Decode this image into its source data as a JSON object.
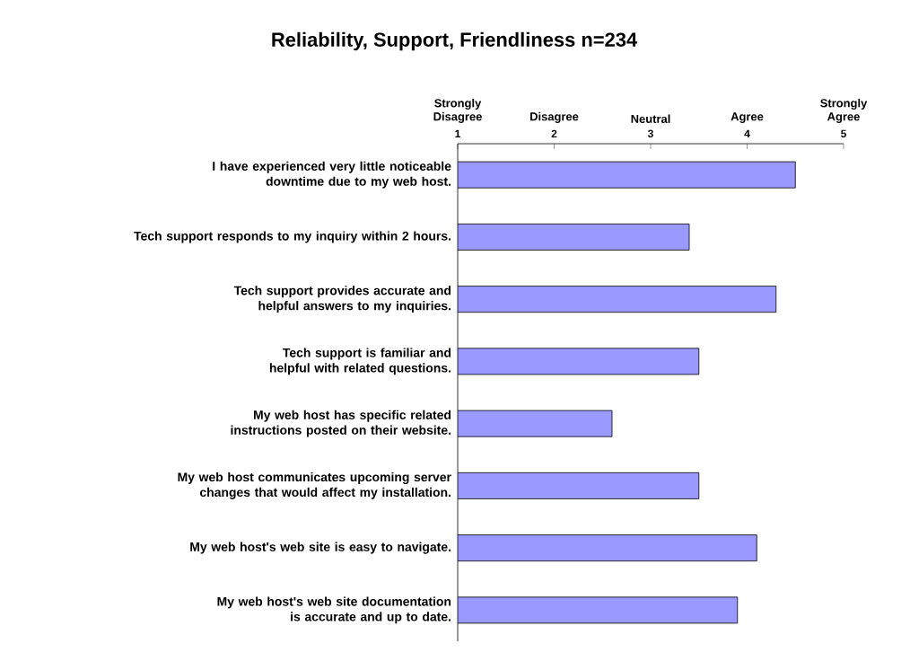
{
  "chart_data": {
    "type": "bar",
    "orientation": "horizontal",
    "title": "Reliability, Support, Friendliness n=234",
    "categories": [
      "I have experienced very little noticeable downtime due to my web host.",
      "Tech support responds to my inquiry within 2 hours.",
      "Tech support provides accurate and helpful answers to my inquiries.",
      "Tech support is familiar and helpful with related questions.",
      "My web host has specific related instructions posted on their website.",
      "My web host communicates upcoming server changes that would affect my installation.",
      "My web host's web site is easy to navigate.",
      "My web host's web site documentation is accurate and up to date."
    ],
    "values": [
      4.5,
      3.4,
      4.3,
      3.5,
      2.6,
      3.5,
      4.1,
      3.9
    ],
    "color": "#9999ff",
    "xlim": [
      1,
      5
    ],
    "xticks": [
      1,
      2,
      3,
      4,
      5
    ],
    "annotations": [
      "Strongly Disagree",
      "Disagree",
      "Neutral",
      "Agree",
      "Strongly Agree"
    ]
  }
}
